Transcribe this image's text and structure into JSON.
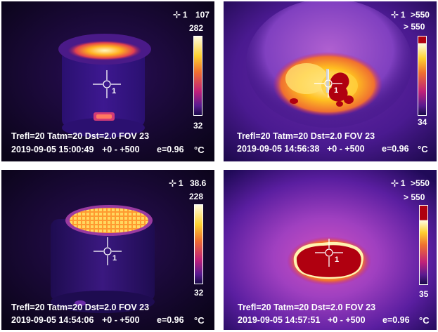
{
  "panels": [
    {
      "spot_value": "107",
      "spot_marker": "1",
      "scale_max": "282",
      "scale_min": "32",
      "params": "Trefl=20 Tatm=20 Dst=2.0 FOV 23",
      "timestamp": "2019-09-05 15:00:49",
      "range": "+0 -  +500",
      "emissivity": "e=0.96",
      "unit": "°C",
      "point_label": "1"
    },
    {
      "spot_value": ">550",
      "spot_marker": "1",
      "scale_max": "> 550",
      "scale_min": "34",
      "params": "Trefl=20 Tatm=20 Dst=2.0 FOV 23",
      "timestamp": "2019-09-05 14:56:38",
      "range": "+0 -  +500",
      "emissivity": "e=0.96",
      "unit": "°C",
      "point_label": "1"
    },
    {
      "spot_value": "38.6",
      "spot_marker": "1",
      "scale_max": "228",
      "scale_min": "32",
      "params": "Trefl=20 Tatm=20 Dst=2.0 FOV 23",
      "timestamp": "2019-09-05 14:54:06",
      "range": "+0 -  +500",
      "emissivity": "e=0.96",
      "unit": "°C",
      "point_label": "1"
    },
    {
      "spot_value": ">550",
      "spot_marker": "1",
      "scale_max": "> 550",
      "scale_min": "35",
      "params": "Trefl=20 Tatm=20 Dst=2.0 FOV 23",
      "timestamp": "2019-09-05 14:57:51",
      "range": "+0 -  +500",
      "emissivity": "e=0.96",
      "unit": "°C",
      "point_label": "1"
    }
  ],
  "colors": {
    "palette_low": "#1a0a4a",
    "palette_mid": "#c0207a",
    "palette_high": "#ffd030",
    "palette_top": "#fffbe0",
    "saturation": "#b00010"
  }
}
